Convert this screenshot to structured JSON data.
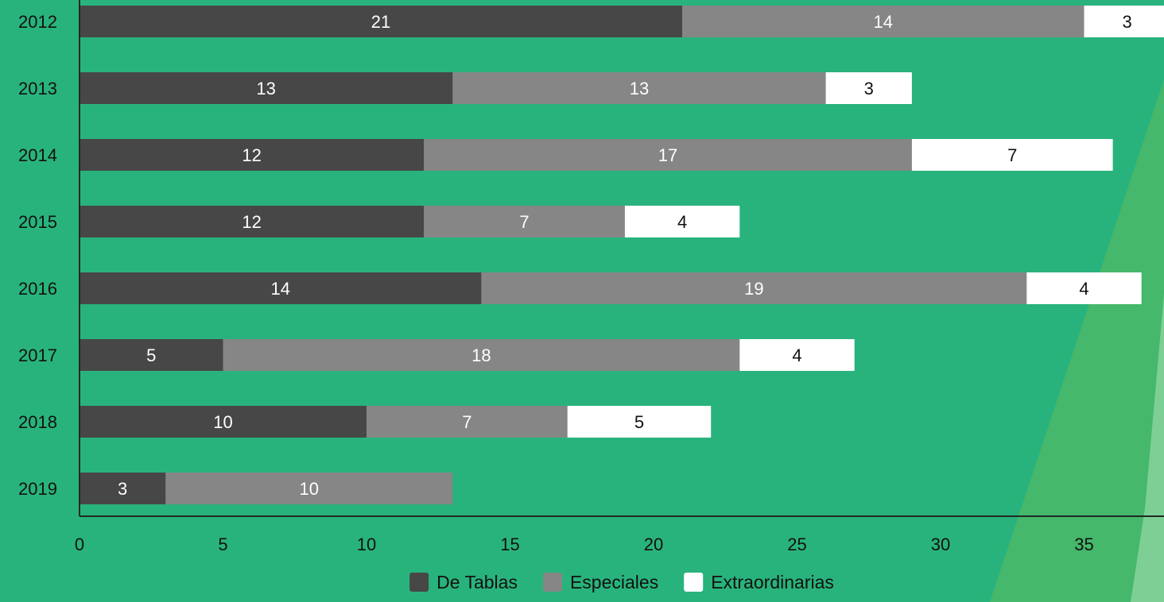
{
  "colors": {
    "background": "#29b37c",
    "accent_green": "#45b86b",
    "accent_light": "#7dcf95",
    "axis": "#1f2a24"
  },
  "chart_data": {
    "type": "bar",
    "orientation": "horizontal",
    "stacked": true,
    "categories": [
      "2012",
      "2013",
      "2014",
      "2015",
      "2016",
      "2017",
      "2018",
      "2019"
    ],
    "series": [
      {
        "name": "De Tablas",
        "color": "#474747",
        "label_color": "#ffffff",
        "values": [
          21,
          13,
          12,
          12,
          14,
          5,
          10,
          3
        ]
      },
      {
        "name": "Especiales",
        "color": "#868686",
        "label_color": "#ffffff",
        "values": [
          14,
          13,
          17,
          7,
          19,
          18,
          7,
          10
        ]
      },
      {
        "name": "Extraordinarias",
        "color": "#ffffff",
        "label_color": "#111111",
        "values": [
          3,
          3,
          7,
          4,
          4,
          4,
          5,
          null
        ]
      }
    ],
    "x_ticks": [
      "0",
      "5",
      "10",
      "15",
      "20",
      "25",
      "30",
      "35"
    ],
    "xlim": [
      0,
      38
    ],
    "legend": "bottom",
    "grid": false
  }
}
